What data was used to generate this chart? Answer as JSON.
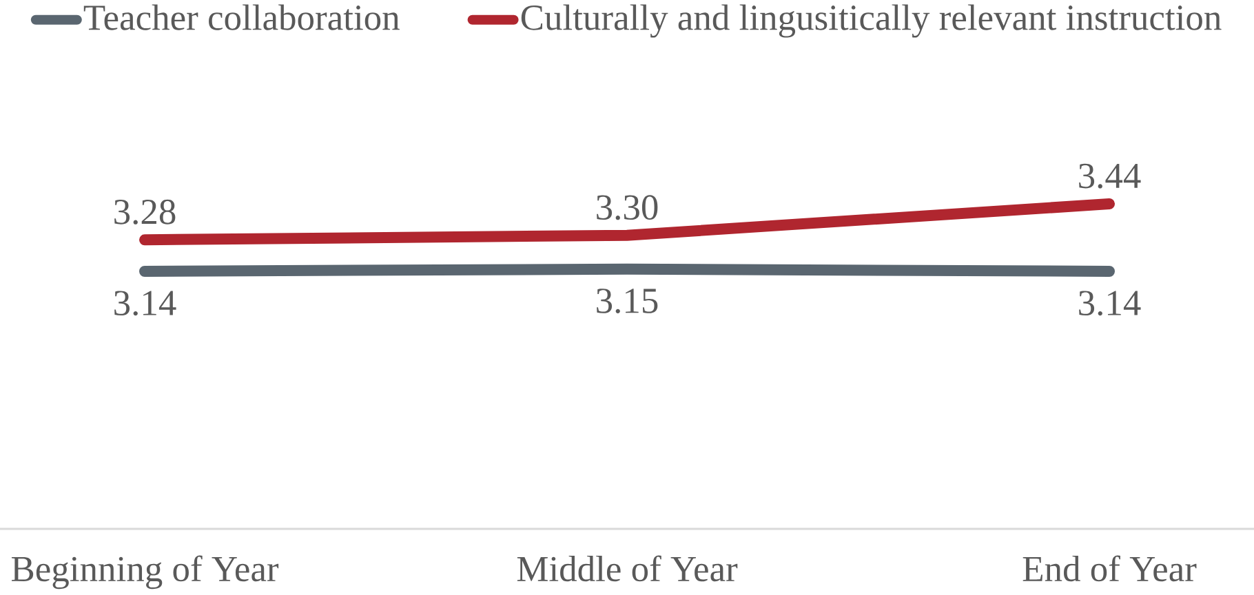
{
  "chart_data": {
    "type": "line",
    "categories": [
      "Beginning of Year",
      "Middle of Year",
      "End of Year"
    ],
    "series": [
      {
        "name": "Teacher collaboration",
        "color": "#5a6670",
        "values": [
          3.14,
          3.15,
          3.14
        ],
        "value_labels": [
          "3.14",
          "3.15",
          "3.14"
        ]
      },
      {
        "name": "Culturally and lingusitically relevant instruction",
        "color": "#b0262f",
        "values": [
          3.28,
          3.3,
          3.44
        ],
        "value_labels": [
          "3.28",
          "3.30",
          "3.44"
        ]
      }
    ],
    "tick_labels": "x",
    "legend": "top",
    "marker": "none",
    "line_style": "solid"
  }
}
